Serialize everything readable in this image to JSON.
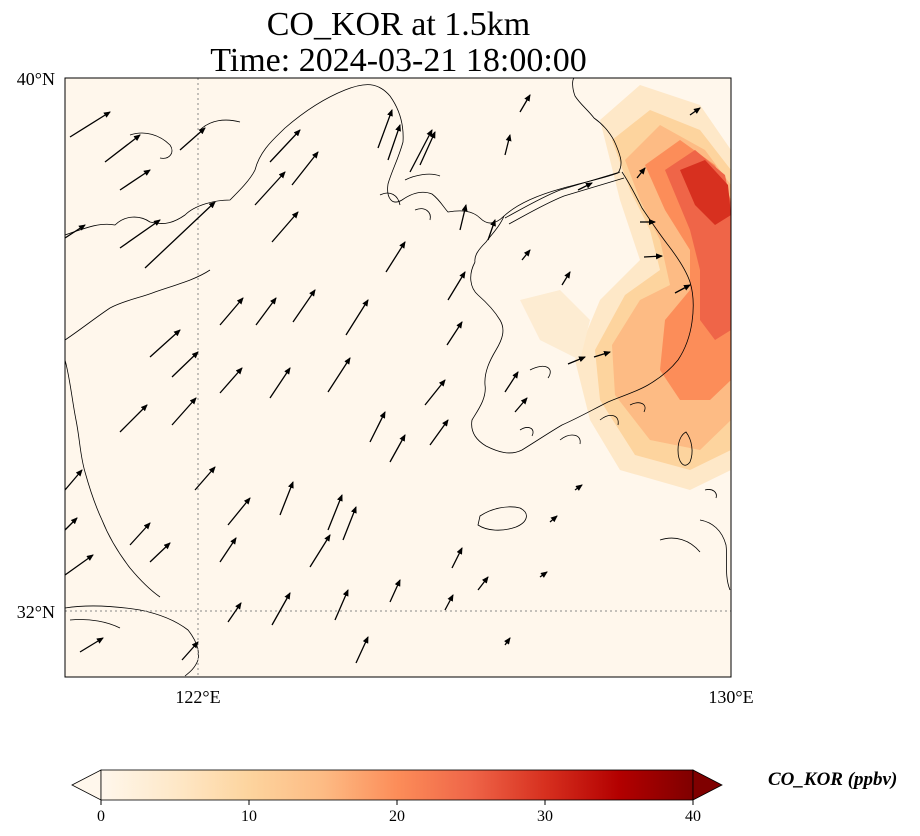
{
  "title": {
    "line1": "CO_KOR at 1.5km",
    "line2": "Time: 2024-03-21 18:00:00"
  },
  "map": {
    "lat_labels": [
      "40°N",
      "32°N"
    ],
    "lon_labels": [
      "122°E",
      "130°E"
    ],
    "extent": {
      "lon": [
        120,
        130
      ],
      "lat": [
        31,
        40
      ]
    },
    "gridlines": {
      "lon": [
        122,
        130
      ],
      "lat": [
        32,
        40
      ]
    }
  },
  "colorbar": {
    "label": "CO_KOR (ppbv)",
    "ticks": [
      "0",
      "10",
      "20",
      "30",
      "40"
    ],
    "range": [
      0,
      40
    ],
    "colormap": "OrRd",
    "extend": "both",
    "colors": [
      "#fff7ec",
      "#fee8c8",
      "#fdd49e",
      "#fdbb84",
      "#fc8d59",
      "#ef6548",
      "#d7301f",
      "#b30000",
      "#7f0000"
    ]
  }
}
